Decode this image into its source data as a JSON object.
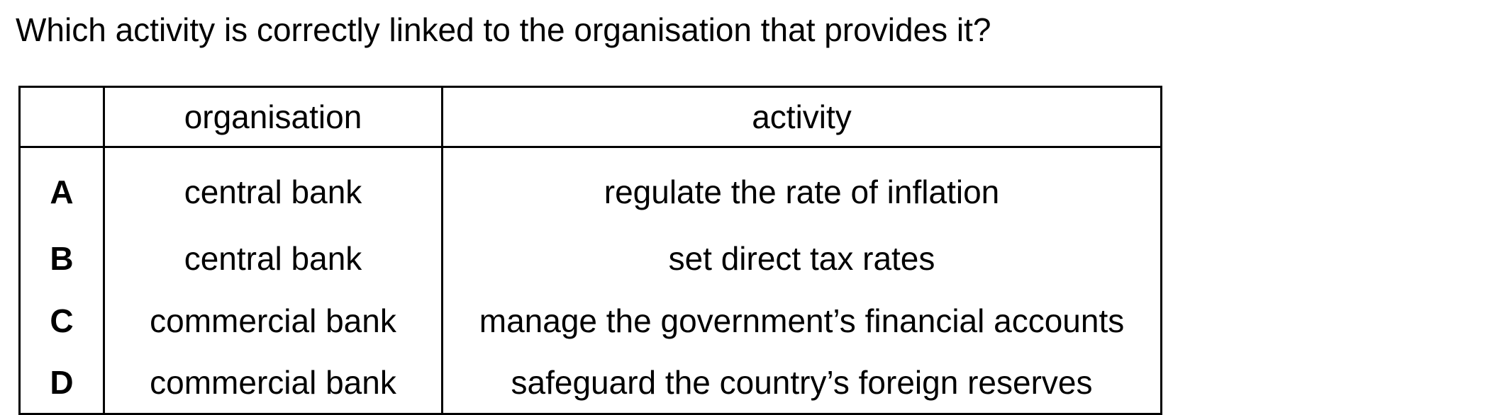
{
  "question": "Which activity is correctly linked to the organisation that provides it?",
  "table": {
    "headers": {
      "letter": "",
      "organisation": "organisation",
      "activity": "activity"
    },
    "rows": [
      {
        "letter": "A",
        "organisation": "central bank",
        "activity": "regulate the rate of inflation"
      },
      {
        "letter": "B",
        "organisation": "central bank",
        "activity": "set direct tax rates"
      },
      {
        "letter": "C",
        "organisation": "commercial bank",
        "activity": "manage the government’s financial accounts"
      },
      {
        "letter": "D",
        "organisation": "commercial bank",
        "activity": "safeguard the country’s foreign reserves"
      }
    ]
  }
}
